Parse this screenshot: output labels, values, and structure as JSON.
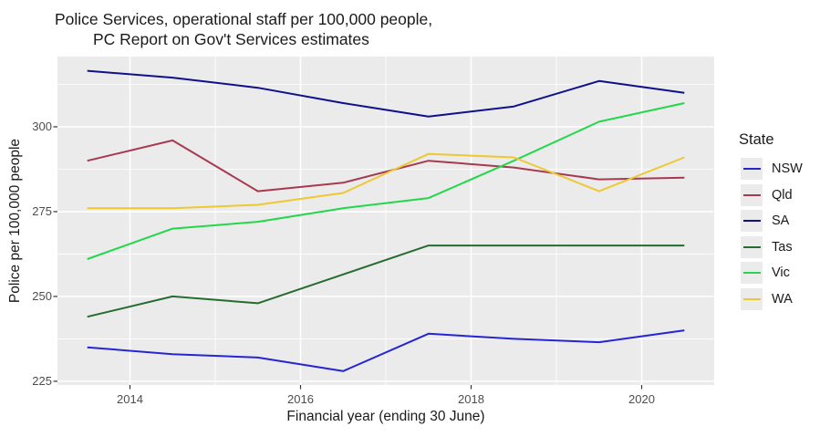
{
  "title": {
    "line1": "Police Services, operational staff per 100,000 people,",
    "line2": "PC Report on Gov't Services estimates"
  },
  "chart_data": {
    "type": "line",
    "title": "Police Services, operational staff per 100,000 people, PC Report on Gov't Services estimates",
    "xlabel": "Financial year (ending 30 June)",
    "ylabel": "Police per 100,000 people",
    "legend_title": "State",
    "legend_position": "right",
    "x": [
      2013.5,
      2014.5,
      2015.5,
      2016.5,
      2017.5,
      2018.5,
      2019.5,
      2020.5
    ],
    "series": [
      {
        "name": "NSW",
        "color": "#2525D6",
        "values": [
          235,
          233,
          232,
          228,
          239,
          237.5,
          236.5,
          240
        ]
      },
      {
        "name": "Qld",
        "color": "#A63A50",
        "values": [
          290,
          296,
          281,
          283.5,
          290,
          288,
          284.5,
          285
        ]
      },
      {
        "name": "SA",
        "color": "#10108C",
        "values": [
          316.5,
          314.5,
          311.5,
          307,
          303,
          306,
          313.5,
          310
        ]
      },
      {
        "name": "Tas",
        "color": "#256D2F",
        "values": [
          244,
          250,
          248,
          256.5,
          265,
          265,
          265,
          265
        ]
      },
      {
        "name": "Vic",
        "color": "#22D849",
        "values": [
          261,
          270,
          272,
          276,
          279,
          290,
          301.5,
          307
        ]
      },
      {
        "name": "WA",
        "color": "#EDC833",
        "values": [
          276,
          276,
          277,
          280.5,
          292,
          291,
          281,
          291
        ]
      }
    ],
    "x_ticks": {
      "major": [
        2014,
        2016,
        2018,
        2020
      ],
      "minor": [
        2015,
        2017,
        2019
      ]
    },
    "y_ticks": {
      "major": [
        225,
        250,
        275,
        300
      ],
      "minor": [
        237.5,
        262.5,
        287.5,
        312.5
      ]
    },
    "x_domain": [
      2013.15,
      2020.85
    ],
    "y_domain": [
      223.9,
      320.7
    ],
    "grid": true,
    "panel_bg": "#EBEBEB",
    "grid_color": "#FFFFFF",
    "tick_color": "#333333",
    "tick_label_color": "#4D4D4D"
  }
}
